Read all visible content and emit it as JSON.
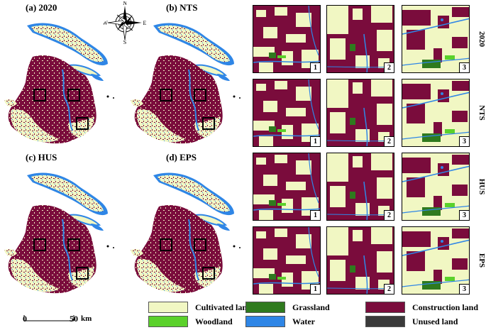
{
  "colors": {
    "cultivated": "#f1f7c3",
    "woodland": "#5bd12b",
    "grassland": "#2f7a1e",
    "water": "#2f86e6",
    "construction": "#7a0c3c",
    "unused": "#3a3a3a"
  },
  "panels": [
    {
      "id": "a",
      "title": "(a) 2020"
    },
    {
      "id": "b",
      "title": "(b) NTS"
    },
    {
      "id": "c",
      "title": "(c) HUS"
    },
    {
      "id": "d",
      "title": "(d) EPS"
    }
  ],
  "compass": {
    "n": "N",
    "s": "S",
    "e": "E",
    "w": "W",
    "icon": "compass-rose-icon"
  },
  "rows": [
    {
      "label": "2020"
    },
    {
      "label": "NTS"
    },
    {
      "label": "HUS"
    },
    {
      "label": "EPS"
    }
  ],
  "tile_numbers": [
    "1",
    "2",
    "3"
  ],
  "legend": [
    {
      "key": "cultivated",
      "label": "Cultivated land"
    },
    {
      "key": "grassland",
      "label": "Grassland"
    },
    {
      "key": "construction",
      "label": "Construction land"
    },
    {
      "key": "woodland",
      "label": "Woodland"
    },
    {
      "key": "water",
      "label": "Water"
    },
    {
      "key": "unused",
      "label": "Unused land"
    }
  ],
  "scale": {
    "start": "0",
    "end": "50",
    "unit": "km"
  }
}
